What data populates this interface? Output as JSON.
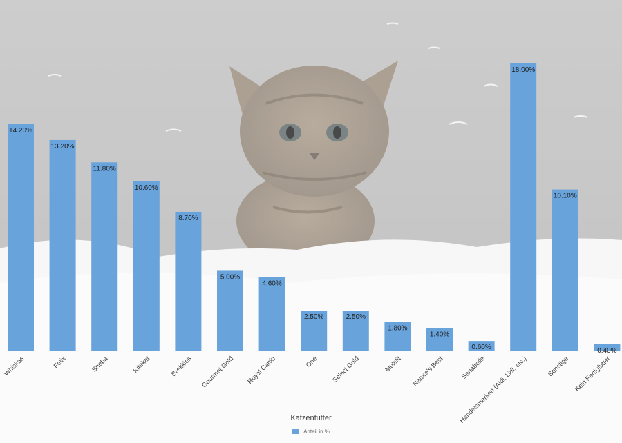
{
  "chart_data": {
    "type": "bar",
    "categories": [
      "Whiskas",
      "Felix",
      "Sheba",
      "Kitekat",
      "Brekkies",
      "Gourmet Gold",
      "Royal Canin",
      "One",
      "Select Gold",
      "Multifit",
      "Nature's Best",
      "Sanabelle",
      "Handelsmarken (Aldi, Lidl, etc.)",
      "Sonstige",
      "Kein Fertigfutter"
    ],
    "series": [
      {
        "name": "Anteil in %",
        "values": [
          14.2,
          13.2,
          11.8,
          10.6,
          8.7,
          5.0,
          4.6,
          2.5,
          2.5,
          1.8,
          1.4,
          0.6,
          18.0,
          10.1,
          0.4
        ],
        "labels": [
          "14.20%",
          "13.20%",
          "11.80%",
          "10.60%",
          "8.70%",
          "5.00%",
          "4.60%",
          "2.50%",
          "2.50%",
          "1.80%",
          "1.40%",
          "0.60%",
          "18.00%",
          "10.10%",
          "0.40%"
        ]
      }
    ],
    "title": "",
    "xlabel": "",
    "ylabel": "",
    "ylim": [
      0,
      18
    ],
    "grid": false,
    "legend": {
      "title": "Katzenfutter",
      "placement": "bottom-center"
    },
    "colors": {
      "bar": "#68a3dc",
      "label": "#222222",
      "tick": "#444444"
    }
  },
  "background": {
    "image": "kitten-on-feathers"
  }
}
